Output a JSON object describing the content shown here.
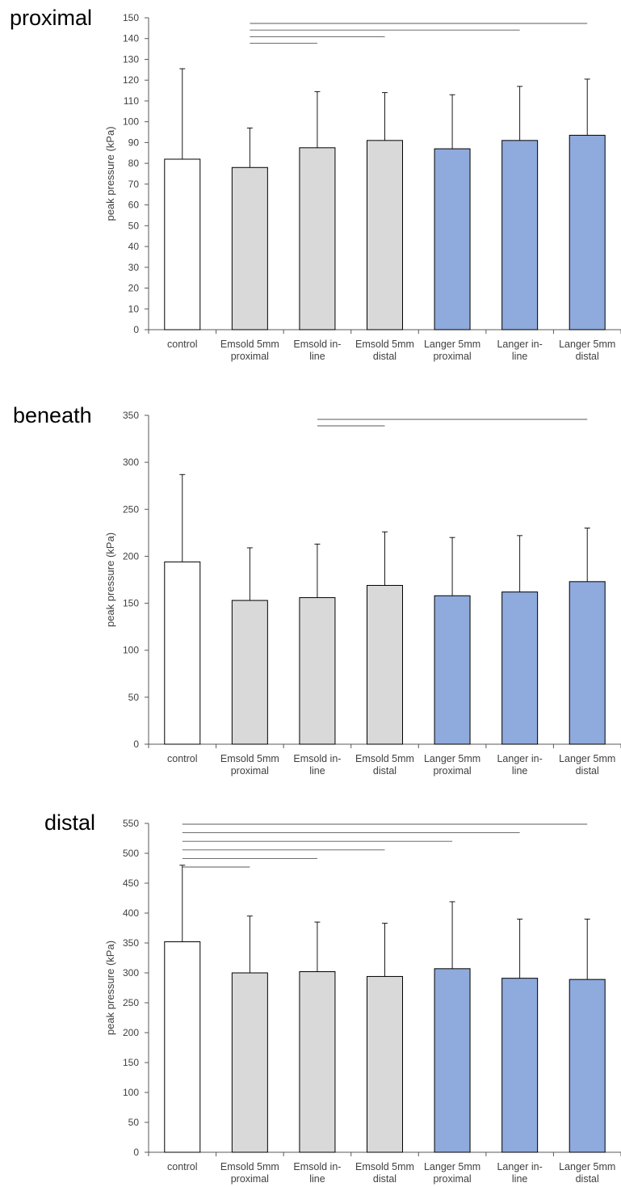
{
  "chart_data": [
    {
      "type": "bar",
      "title": "proximal",
      "xlabel": "",
      "ylabel": "peak pressure (kPa)",
      "ylim": [
        0,
        150
      ],
      "yticks": [
        0,
        10,
        20,
        30,
        40,
        50,
        60,
        70,
        80,
        90,
        100,
        110,
        120,
        130,
        140,
        150
      ],
      "grid": false,
      "categories": [
        [
          "control"
        ],
        [
          "Emsold 5mm",
          "proximal"
        ],
        [
          "Emsold in-",
          "line"
        ],
        [
          "Emsold 5mm",
          "distal"
        ],
        [
          "Langer 5mm",
          "proximal"
        ],
        [
          "Langer in-",
          "line"
        ],
        [
          "Langer 5mm",
          "distal"
        ]
      ],
      "values": [
        82,
        78,
        87.5,
        91,
        87,
        91,
        93.5
      ],
      "errors": [
        43.5,
        19,
        27,
        23,
        26,
        26,
        27
      ],
      "bar_colors": [
        "#ffffff",
        "#d9d9d9",
        "#d9d9d9",
        "#d9d9d9",
        "#8faadc",
        "#8faadc",
        "#8faadc"
      ],
      "significance": [
        {
          "from": 1,
          "to": 6
        },
        {
          "from": 1,
          "to": 5
        },
        {
          "from": 1,
          "to": 3
        },
        {
          "from": 1,
          "to": 2
        }
      ]
    },
    {
      "type": "bar",
      "title": "beneath",
      "xlabel": "",
      "ylabel": "peak pressure (kPa)",
      "ylim": [
        0,
        350
      ],
      "yticks": [
        0,
        50,
        100,
        150,
        200,
        250,
        300,
        350
      ],
      "grid": false,
      "categories": [
        [
          "control"
        ],
        [
          "Emsold 5mm",
          "proximal"
        ],
        [
          "Emsold in-",
          "line"
        ],
        [
          "Emsold 5mm",
          "distal"
        ],
        [
          "Langer 5mm",
          "proximal"
        ],
        [
          "Langer in-",
          "line"
        ],
        [
          "Langer 5mm",
          "distal"
        ]
      ],
      "values": [
        194,
        153,
        156,
        169,
        158,
        162,
        173
      ],
      "errors": [
        93,
        56,
        57,
        57,
        62,
        60,
        57
      ],
      "bar_colors": [
        "#ffffff",
        "#d9d9d9",
        "#d9d9d9",
        "#d9d9d9",
        "#8faadc",
        "#8faadc",
        "#8faadc"
      ],
      "significance": [
        {
          "from": 2,
          "to": 6
        },
        {
          "from": 2,
          "to": 3
        }
      ]
    },
    {
      "type": "bar",
      "title": "distal",
      "xlabel": "",
      "ylabel": "peak pressure (kPa)",
      "ylim": [
        0,
        550
      ],
      "yticks": [
        0,
        50,
        100,
        150,
        200,
        250,
        300,
        350,
        400,
        450,
        500,
        550
      ],
      "grid": false,
      "categories": [
        [
          "control"
        ],
        [
          "Emsold 5mm",
          "proximal"
        ],
        [
          "Emsold in-",
          "line"
        ],
        [
          "Emsold 5mm",
          "distal"
        ],
        [
          "Langer 5mm",
          "proximal"
        ],
        [
          "Langer in-",
          "line"
        ],
        [
          "Langer 5mm",
          "distal"
        ]
      ],
      "values": [
        352,
        300,
        302,
        294,
        307,
        291,
        289
      ],
      "errors": [
        128,
        95,
        83,
        89,
        112,
        99,
        101
      ],
      "bar_colors": [
        "#ffffff",
        "#d9d9d9",
        "#d9d9d9",
        "#d9d9d9",
        "#8faadc",
        "#8faadc",
        "#8faadc"
      ],
      "significance": [
        {
          "from": 0,
          "to": 6
        },
        {
          "from": 0,
          "to": 5
        },
        {
          "from": 0,
          "to": 4
        },
        {
          "from": 0,
          "to": 3
        },
        {
          "from": 0,
          "to": 2
        },
        {
          "from": 0,
          "to": 1
        }
      ]
    }
  ]
}
